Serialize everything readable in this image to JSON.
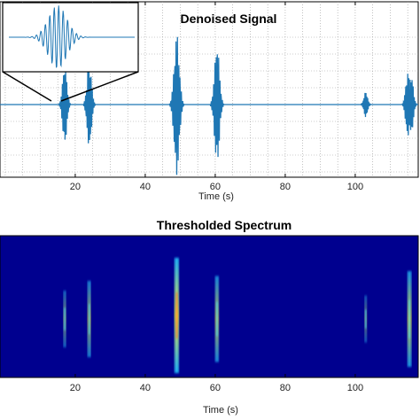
{
  "chart_data": [
    {
      "type": "line",
      "title": "Denoised Signal",
      "xlabel": "Time (s)",
      "ylabel": "",
      "xlim": [
        -1.5,
        118
      ],
      "x_ticks": [
        20,
        40,
        60,
        80,
        100
      ],
      "grid": true,
      "line_color": "#1f77b4",
      "events": [
        {
          "time": 17,
          "amplitude": 0.55
        },
        {
          "time": 24,
          "amplitude": 0.6
        },
        {
          "time": 49,
          "amplitude": 1.0
        },
        {
          "time": 60.5,
          "amplitude": 0.85
        },
        {
          "time": 103,
          "amplitude": 0.18
        },
        {
          "time": 115,
          "amplitude": 0.45
        },
        {
          "time": 116,
          "amplitude": 0.42
        }
      ],
      "inset": {
        "zoom_of_event_time": 17,
        "line_color": "#1f77b4"
      }
    },
    {
      "type": "heatmap",
      "title": "Thresholded Spectrum",
      "xlabel": "Time (s)",
      "xlim": [
        -1.5,
        118
      ],
      "x_ticks": [
        20,
        40,
        60,
        80,
        100
      ],
      "background_color": "#00008f",
      "hot_spots": [
        {
          "time": 17,
          "intensity": 0.4
        },
        {
          "time": 24,
          "intensity": 0.6
        },
        {
          "time": 49,
          "intensity": 1.0
        },
        {
          "time": 60.5,
          "intensity": 0.7
        },
        {
          "time": 103,
          "intensity": 0.3
        },
        {
          "time": 115.5,
          "intensity": 0.8
        }
      ]
    }
  ]
}
